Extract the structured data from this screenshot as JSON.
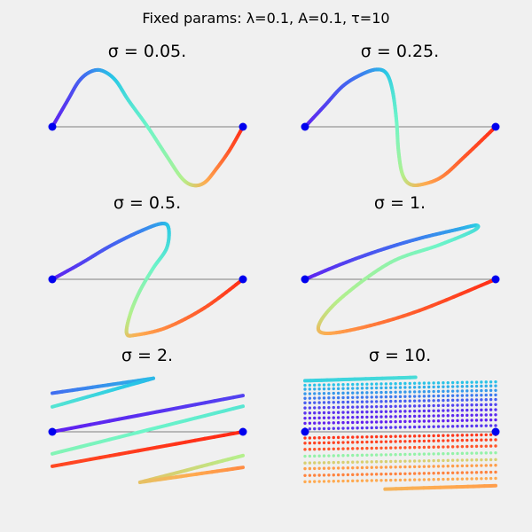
{
  "figure": {
    "suptitle": "Fixed params: λ=0.1, A=0.1, τ=10",
    "background": "#f0f0f0"
  },
  "chart_data": [
    {
      "type": "line",
      "title": "σ = 0.05.",
      "sigma": 0.05,
      "endpoints": [
        [
          0,
          0
        ],
        [
          1,
          0
        ]
      ],
      "colormap": "rainbow",
      "points": [
        [
          0,
          0
        ],
        [
          0.08,
          0.45
        ],
        [
          0.14,
          0.78
        ],
        [
          0.2,
          0.94
        ],
        [
          0.26,
          0.96
        ],
        [
          0.33,
          0.8
        ],
        [
          0.4,
          0.45
        ],
        [
          0.5,
          0
        ],
        [
          0.6,
          -0.5
        ],
        [
          0.68,
          -0.88
        ],
        [
          0.74,
          -1.0
        ],
        [
          0.8,
          -0.95
        ],
        [
          0.86,
          -0.72
        ],
        [
          0.93,
          -0.4
        ],
        [
          1,
          0
        ]
      ]
    },
    {
      "type": "line",
      "title": "σ = 0.25.",
      "sigma": 0.25,
      "endpoints": [
        [
          0,
          0
        ],
        [
          1,
          0
        ]
      ],
      "colormap": "rainbow",
      "points": [
        [
          0,
          0
        ],
        [
          0.1,
          0.35
        ],
        [
          0.2,
          0.7
        ],
        [
          0.3,
          0.9
        ],
        [
          0.38,
          0.98
        ],
        [
          0.43,
          0.9
        ],
        [
          0.46,
          0.6
        ],
        [
          0.48,
          0.1
        ],
        [
          0.49,
          -0.4
        ],
        [
          0.51,
          -0.8
        ],
        [
          0.55,
          -0.98
        ],
        [
          0.62,
          -0.98
        ],
        [
          0.72,
          -0.85
        ],
        [
          0.84,
          -0.5
        ],
        [
          1,
          0
        ]
      ]
    },
    {
      "type": "line",
      "title": "σ = 0.5.",
      "sigma": 0.5,
      "endpoints": [
        [
          0,
          0
        ],
        [
          1,
          0
        ]
      ],
      "colormap": "rainbow",
      "points": [
        [
          0,
          0
        ],
        [
          0.15,
          0.28
        ],
        [
          0.3,
          0.58
        ],
        [
          0.45,
          0.83
        ],
        [
          0.57,
          0.98
        ],
        [
          0.61,
          0.9
        ],
        [
          0.6,
          0.55
        ],
        [
          0.53,
          0.2
        ],
        [
          0.46,
          -0.2
        ],
        [
          0.41,
          -0.6
        ],
        [
          0.39,
          -0.95
        ],
        [
          0.44,
          -0.98
        ],
        [
          0.6,
          -0.85
        ],
        [
          0.8,
          -0.5
        ],
        [
          1,
          0
        ]
      ]
    },
    {
      "type": "line",
      "title": "σ = 1.",
      "sigma": 1,
      "endpoints": [
        [
          0,
          0
        ],
        [
          1,
          0
        ]
      ],
      "colormap": "rainbow",
      "points": [
        [
          0,
          0
        ],
        [
          0.2,
          0.28
        ],
        [
          0.4,
          0.52
        ],
        [
          0.6,
          0.72
        ],
        [
          0.8,
          0.88
        ],
        [
          0.9,
          0.95
        ],
        [
          0.88,
          0.85
        ],
        [
          0.7,
          0.6
        ],
        [
          0.45,
          0.3
        ],
        [
          0.2,
          -0.3
        ],
        [
          0.08,
          -0.75
        ],
        [
          0.1,
          -0.95
        ],
        [
          0.3,
          -0.85
        ],
        [
          0.6,
          -0.55
        ],
        [
          1,
          0
        ]
      ]
    },
    {
      "type": "line",
      "title": "σ = 2.",
      "sigma": 2,
      "endpoints": [
        [
          0,
          0
        ],
        [
          1,
          0
        ]
      ],
      "colormap": "rainbow",
      "segments": [
        [
          [
            0,
            0.65
          ],
          [
            0.53,
            0.9
          ]
        ],
        [
          [
            0.53,
            0.9
          ],
          [
            0,
            0.42
          ]
        ],
        [
          [
            0,
            0
          ],
          [
            1,
            0.61
          ]
        ],
        [
          [
            1,
            0.43
          ],
          [
            0,
            -0.37
          ]
        ],
        [
          [
            0,
            -0.58
          ],
          [
            1,
            0
          ]
        ],
        [
          [
            1,
            -0.4
          ],
          [
            0.46,
            -0.85
          ]
        ],
        [
          [
            0.46,
            -0.85
          ],
          [
            1,
            -0.6
          ]
        ]
      ]
    },
    {
      "type": "scatter",
      "title": "σ = 10.",
      "sigma": 10,
      "endpoints": [
        [
          0,
          0
        ],
        [
          1,
          0
        ]
      ],
      "colormap": "rainbow",
      "pattern": "dense diagonal dotted bands"
    }
  ]
}
